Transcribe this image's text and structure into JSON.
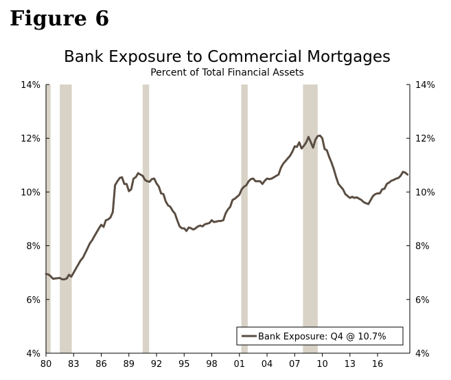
{
  "figure_label": "Figure 6",
  "colors": {
    "line": "#5a4d42",
    "recession": "#d9d3c7",
    "axis": "#000000"
  },
  "chart_data": {
    "type": "line",
    "title": "Bank Exposure to Commercial Mortgages",
    "subtitle": "Percent of Total Financial Assets",
    "xlim": [
      1980,
      2019.5
    ],
    "ylim": [
      4,
      14
    ],
    "y_ticks": [
      4,
      6,
      8,
      10,
      12,
      14
    ],
    "y_tick_labels": [
      "4%",
      "6%",
      "8%",
      "10%",
      "12%",
      "14%"
    ],
    "x_ticks": [
      1980,
      1983,
      1986,
      1989,
      1992,
      1995,
      1998,
      2001,
      2004,
      2007,
      2010,
      2013,
      2016
    ],
    "x_tick_labels": [
      "80",
      "83",
      "86",
      "89",
      "92",
      "95",
      "98",
      "01",
      "04",
      "07",
      "10",
      "13",
      "16"
    ],
    "recession_bands": [
      [
        1980.0,
        1980.5
      ],
      [
        1981.5,
        1982.8
      ],
      [
        1990.5,
        1991.2
      ],
      [
        2001.2,
        2001.9
      ],
      [
        2007.9,
        2009.5
      ]
    ],
    "legend_placement": "bottom-right",
    "series": [
      {
        "name": "Bank Exposure: Q4 @ 10.7%",
        "x": [
          1980.0,
          1980.25,
          1980.5,
          1980.75,
          1981.0,
          1981.25,
          1981.5,
          1981.75,
          1982.0,
          1982.25,
          1982.5,
          1982.75,
          1983.0,
          1983.25,
          1983.5,
          1983.75,
          1984.0,
          1984.25,
          1984.5,
          1984.75,
          1985.0,
          1985.25,
          1985.5,
          1985.75,
          1986.0,
          1986.25,
          1986.5,
          1986.75,
          1987.0,
          1987.25,
          1987.5,
          1987.75,
          1988.0,
          1988.25,
          1988.5,
          1988.75,
          1989.0,
          1989.25,
          1989.5,
          1989.75,
          1990.0,
          1990.25,
          1990.5,
          1990.75,
          1991.0,
          1991.25,
          1991.5,
          1991.75,
          1992.0,
          1992.25,
          1992.5,
          1992.75,
          1993.0,
          1993.25,
          1993.5,
          1993.75,
          1994.0,
          1994.25,
          1994.5,
          1994.75,
          1995.0,
          1995.25,
          1995.5,
          1995.75,
          1996.0,
          1996.25,
          1996.5,
          1996.75,
          1997.0,
          1997.25,
          1997.5,
          1997.75,
          1998.0,
          1998.25,
          1998.5,
          1998.75,
          1999.0,
          1999.25,
          1999.5,
          1999.75,
          2000.0,
          2000.25,
          2000.5,
          2000.75,
          2001.0,
          2001.25,
          2001.5,
          2001.75,
          2002.0,
          2002.25,
          2002.5,
          2002.75,
          2003.0,
          2003.25,
          2003.5,
          2003.75,
          2004.0,
          2004.25,
          2004.5,
          2004.75,
          2005.0,
          2005.25,
          2005.5,
          2005.75,
          2006.0,
          2006.25,
          2006.5,
          2006.75,
          2007.0,
          2007.25,
          2007.5,
          2007.75,
          2008.0,
          2008.25,
          2008.5,
          2008.75,
          2009.0,
          2009.25,
          2009.5,
          2009.75,
          2010.0,
          2010.25,
          2010.5,
          2010.75,
          2011.0,
          2011.25,
          2011.5,
          2011.75,
          2012.0,
          2012.25,
          2012.5,
          2012.75,
          2013.0,
          2013.25,
          2013.5,
          2013.75,
          2014.0,
          2014.25,
          2014.5,
          2014.75,
          2015.0,
          2015.25,
          2015.5,
          2015.75,
          2016.0,
          2016.25,
          2016.5,
          2016.75,
          2017.0,
          2017.25,
          2017.5,
          2017.75,
          2018.0,
          2018.25,
          2018.5,
          2018.75,
          2019.0,
          2019.25
        ],
        "values": [
          6.95,
          6.93,
          6.87,
          6.77,
          6.78,
          6.79,
          6.8,
          6.75,
          6.75,
          6.78,
          6.92,
          6.85,
          7.0,
          7.15,
          7.3,
          7.45,
          7.55,
          7.72,
          7.9,
          8.08,
          8.2,
          8.35,
          8.5,
          8.65,
          8.78,
          8.7,
          8.95,
          8.98,
          9.05,
          9.25,
          10.25,
          10.4,
          10.52,
          10.55,
          10.3,
          10.3,
          10.03,
          10.1,
          10.5,
          10.55,
          10.7,
          10.65,
          10.6,
          10.45,
          10.4,
          10.38,
          10.48,
          10.5,
          10.32,
          10.2,
          9.95,
          9.92,
          9.65,
          9.5,
          9.45,
          9.3,
          9.2,
          8.95,
          8.72,
          8.65,
          8.65,
          8.55,
          8.68,
          8.65,
          8.6,
          8.65,
          8.72,
          8.75,
          8.72,
          8.8,
          8.82,
          8.85,
          8.95,
          8.88,
          8.9,
          8.92,
          8.92,
          8.95,
          9.2,
          9.35,
          9.45,
          9.7,
          9.75,
          9.82,
          9.9,
          10.1,
          10.2,
          10.25,
          10.4,
          10.48,
          10.5,
          10.4,
          10.4,
          10.4,
          10.3,
          10.42,
          10.5,
          10.48,
          10.5,
          10.55,
          10.6,
          10.65,
          10.9,
          11.05,
          11.15,
          11.25,
          11.35,
          11.5,
          11.7,
          11.68,
          11.85,
          11.62,
          11.72,
          11.85,
          12.05,
          11.85,
          11.65,
          11.95,
          12.08,
          12.1,
          12.0,
          11.6,
          11.55,
          11.3,
          11.1,
          10.85,
          10.55,
          10.3,
          10.2,
          10.1,
          9.92,
          9.85,
          9.78,
          9.82,
          9.78,
          9.8,
          9.75,
          9.7,
          9.62,
          9.58,
          9.55,
          9.7,
          9.85,
          9.92,
          9.95,
          9.95,
          10.1,
          10.12,
          10.3,
          10.35,
          10.42,
          10.45,
          10.5,
          10.52,
          10.6,
          10.75,
          10.72,
          10.65
        ]
      }
    ]
  }
}
